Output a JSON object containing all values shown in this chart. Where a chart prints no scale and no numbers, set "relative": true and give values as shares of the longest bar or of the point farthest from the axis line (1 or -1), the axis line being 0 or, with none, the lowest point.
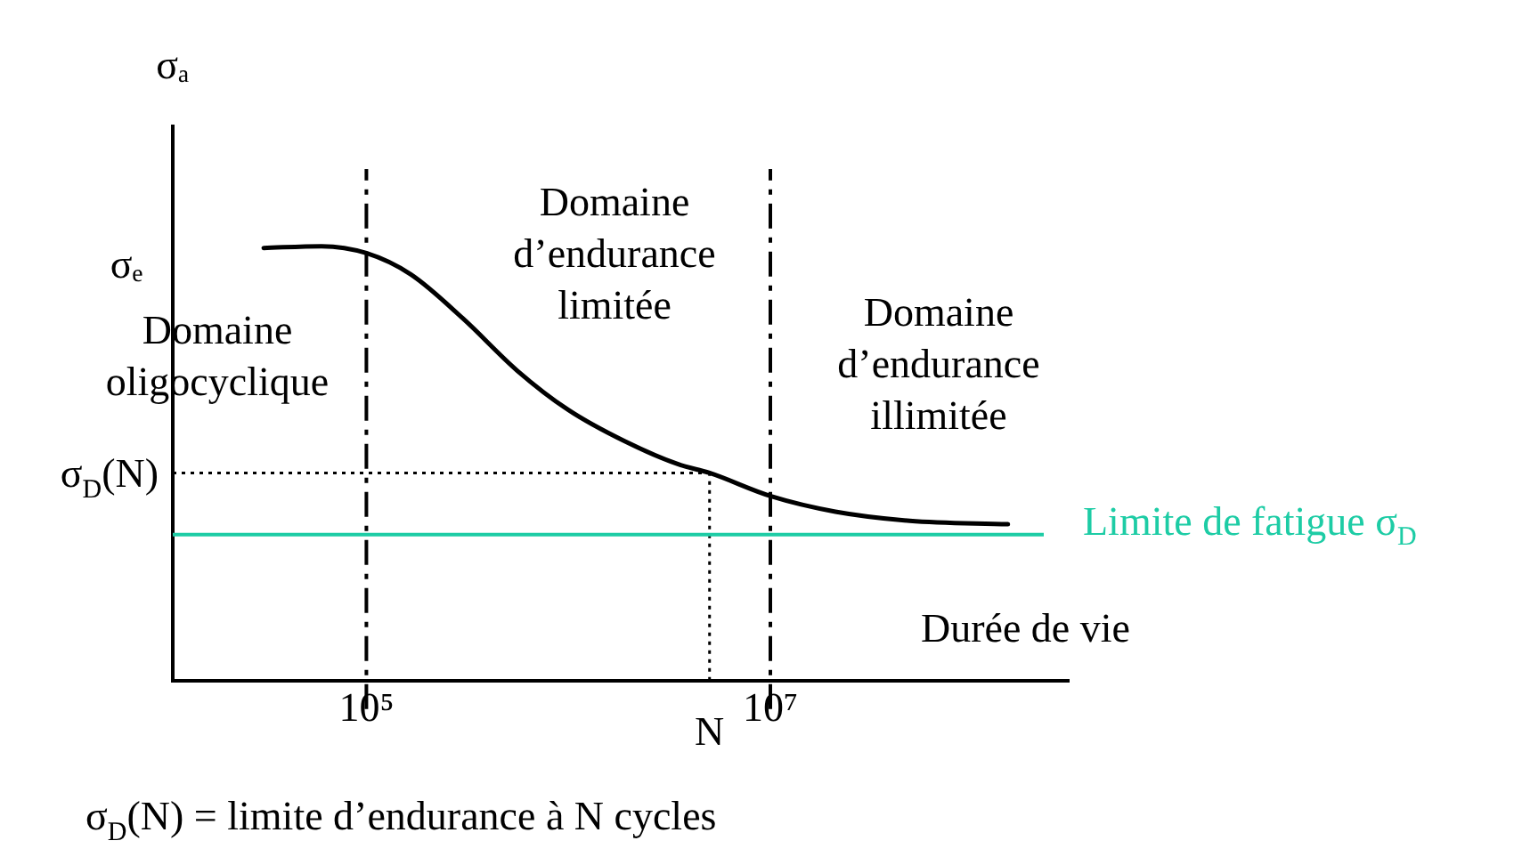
{
  "chart_data": {
    "type": "line",
    "relative": true,
    "log": "x",
    "grid": false,
    "legend": false,
    "marker": "none",
    "line_style": "solid",
    "ylabel": "σₐ",
    "xlabel": "Durée de vie",
    "xlim": [
      11000,
      300000000
    ],
    "xticks": [
      {
        "value": 100000,
        "label": "10⁵"
      },
      {
        "value": 10000000,
        "label": "10⁷"
      }
    ],
    "x": [
      31000,
      60000,
      100000,
      166000,
      300000,
      560000,
      1000000,
      1900000,
      3500000,
      5000000,
      10000000,
      21000000,
      49000000,
      150000000
    ],
    "series": [
      {
        "color": "#000000",
        "values": [
          0.996,
          1,
          0.984,
          0.935,
          0.834,
          0.713,
          0.623,
          0.551,
          0.498,
          0.478,
          0.425,
          0.389,
          0.368,
          0.36
        ]
      }
    ],
    "ref_lines": [
      {
        "axis": "x",
        "value": 100000,
        "line_style": "dashed",
        "color": "#000000"
      },
      {
        "axis": "x",
        "value": 10000000,
        "line_style": "dashed",
        "color": "#000000"
      },
      {
        "axis": "x",
        "value": 5000000,
        "label": "N",
        "line_style": "dotted",
        "color": "#000000"
      },
      {
        "axis": "y",
        "value": 0.478,
        "label": "σ$_{D}$(N)",
        "line_style": "dotted",
        "color": "#000000"
      },
      {
        "axis": "y",
        "value": 0.336,
        "label": "Limite de fatigue σ$_{D}$",
        "line_style": "solid",
        "color": "#1dcca5"
      }
    ],
    "annotations": [
      "σₑ",
      "Domaine oligocyclique",
      "Domaine d’endurance limitée",
      "Domaine d’endurance illimitée",
      "σ$_{D}$(N) = limite d’endurance à N cycles"
    ]
  }
}
